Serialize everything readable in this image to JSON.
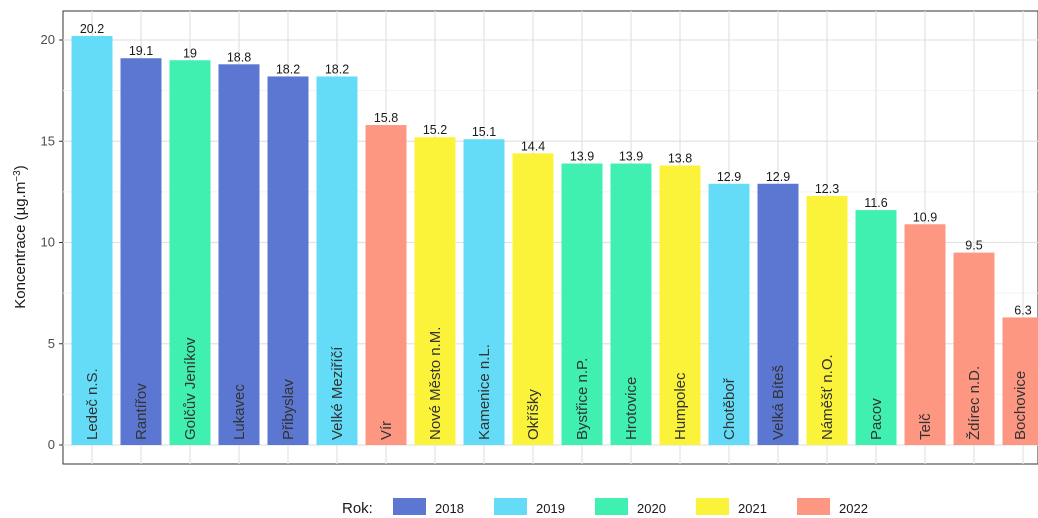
{
  "chart_data": {
    "type": "bar",
    "title": "",
    "ylabel": "Koncentrace (µg.m",
    "ylabel_superscript": "−3",
    "ylabel_close": ")",
    "ylim": [
      0,
      21
    ],
    "yticks": [
      0,
      5,
      10,
      15,
      20
    ],
    "grid": true,
    "categories": [
      "Ledeč n.S.",
      "Rantířov",
      "Golčův Jeníkov",
      "Lukavec",
      "Přibyslav",
      "Velké Meziříčí",
      "Vír",
      "Nové Město n.M.",
      "Kamenice n.L.",
      "Okříšky",
      "Bystřice n.P.",
      "Hrotovice",
      "Humpolec",
      "Chotěboř",
      "Velká Bíteš",
      "Náměšť n.O.",
      "Pacov",
      "Telč",
      "Ždírec n.D.",
      "Bochovice"
    ],
    "values": [
      20.2,
      19.1,
      19,
      18.8,
      18.2,
      18.2,
      15.8,
      15.2,
      15.1,
      14.4,
      13.9,
      13.9,
      13.8,
      12.9,
      12.9,
      12.3,
      11.6,
      10.9,
      9.5,
      6.3
    ],
    "value_labels": [
      "20.2",
      "19.1",
      "19",
      "18.8",
      "18.2",
      "18.2",
      "15.8",
      "15.2",
      "15.1",
      "14.4",
      "13.9",
      "13.9",
      "13.8",
      "12.9",
      "12.9",
      "12.3",
      "11.6",
      "10.9",
      "9.5",
      "6.3"
    ],
    "years": [
      "2019",
      "2018",
      "2020",
      "2018",
      "2018",
      "2019",
      "2022",
      "2021",
      "2019",
      "2021",
      "2020",
      "2020",
      "2021",
      "2019",
      "2018",
      "2021",
      "2020",
      "2022",
      "2022",
      "2022"
    ],
    "legend": {
      "title": "Rok:",
      "placement": "bottom",
      "entries": [
        {
          "label": "2018",
          "color": "#5b77d1"
        },
        {
          "label": "2019",
          "color": "#64dcf7"
        },
        {
          "label": "2020",
          "color": "#3ff0b0"
        },
        {
          "label": "2021",
          "color": "#fbf339"
        },
        {
          "label": "2022",
          "color": "#fd9782"
        }
      ]
    }
  }
}
